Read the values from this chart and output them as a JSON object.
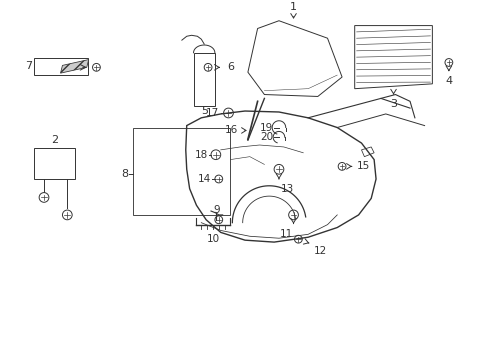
{
  "bg_color": "#ffffff",
  "fig_width": 4.89,
  "fig_height": 3.6,
  "dpi": 100,
  "ec": "#333333",
  "lw": 0.7
}
